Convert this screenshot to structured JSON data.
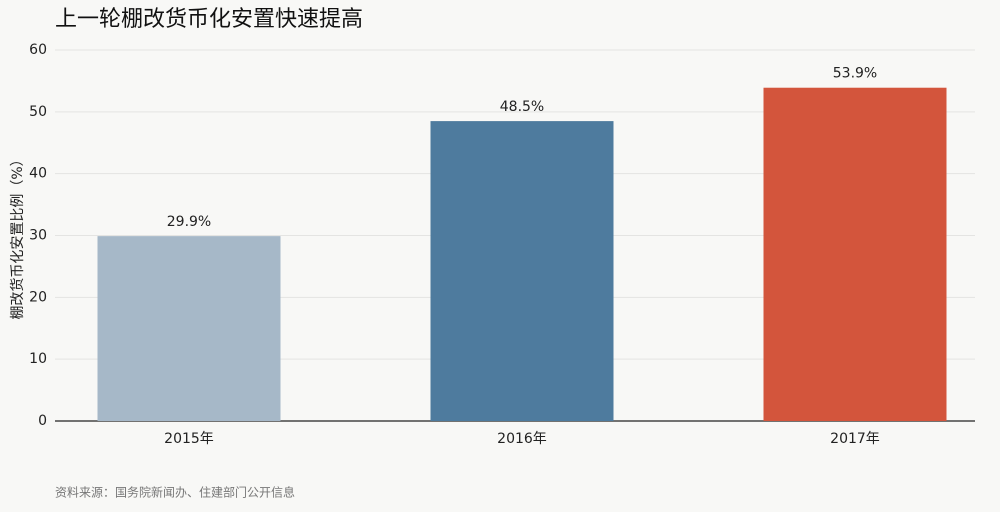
{
  "chart_data": {
    "type": "bar",
    "title": "上一轮棚改货币化安置快速提高",
    "y_label": "棚改货币化安置比例（%）",
    "source": "资料来源：国务院新闻办、住建部门公开信息",
    "categories": [
      "2015年",
      "2016年",
      "2017年"
    ],
    "values": [
      29.9,
      48.5,
      53.9
    ],
    "value_labels": [
      "29.9%",
      "48.5%",
      "53.9%"
    ],
    "colors": [
      "#a6b8c8",
      "#4e7b9e",
      "#d3553c"
    ],
    "ylim": [
      0,
      60
    ],
    "yticks": [
      0,
      10,
      20,
      30,
      40,
      50,
      60
    ],
    "grid": true
  }
}
